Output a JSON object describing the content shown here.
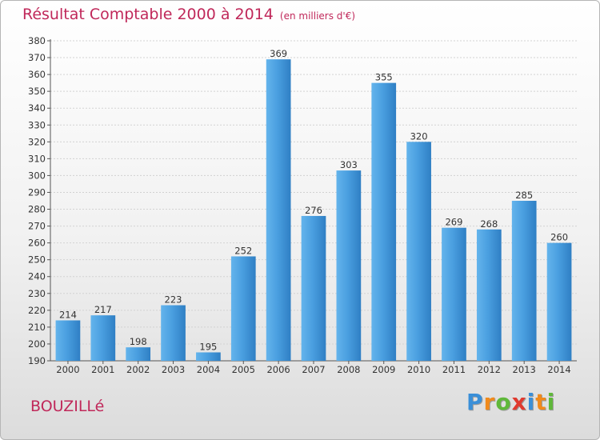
{
  "header": {
    "title": "Résultat Comptable 2000 à 2014",
    "subtitle": "(en milliers d'€)"
  },
  "location": "BOUZILLé",
  "brand": {
    "name": "Proxiti",
    "letters": [
      "P",
      "r",
      "o",
      "x",
      "i",
      "t",
      "i"
    ],
    "letter_colors": [
      "#3a8fd8",
      "#f08a1c",
      "#5fb83a",
      "#e03a2f",
      "#3a8fd8",
      "#f08a1c",
      "#5fb83a"
    ]
  },
  "colors": {
    "title": "#c0285a",
    "bar": "#4a9fe0",
    "bar_light": "#64b4ec",
    "bar_dark": "#2f7fc4"
  },
  "chart_data": {
    "type": "bar",
    "title": "Résultat Comptable 2000 à 2014",
    "xlabel": "",
    "ylabel": "",
    "categories": [
      "2000",
      "2001",
      "2002",
      "2003",
      "2004",
      "2005",
      "2006",
      "2007",
      "2008",
      "2009",
      "2010",
      "2011",
      "2012",
      "2013",
      "2014"
    ],
    "values": [
      214,
      217,
      198,
      223,
      195,
      252,
      369,
      276,
      303,
      355,
      320,
      269,
      268,
      285,
      260
    ],
    "ylim": [
      190,
      380
    ],
    "ytick_step": 10,
    "grid": true,
    "legend": "none"
  }
}
